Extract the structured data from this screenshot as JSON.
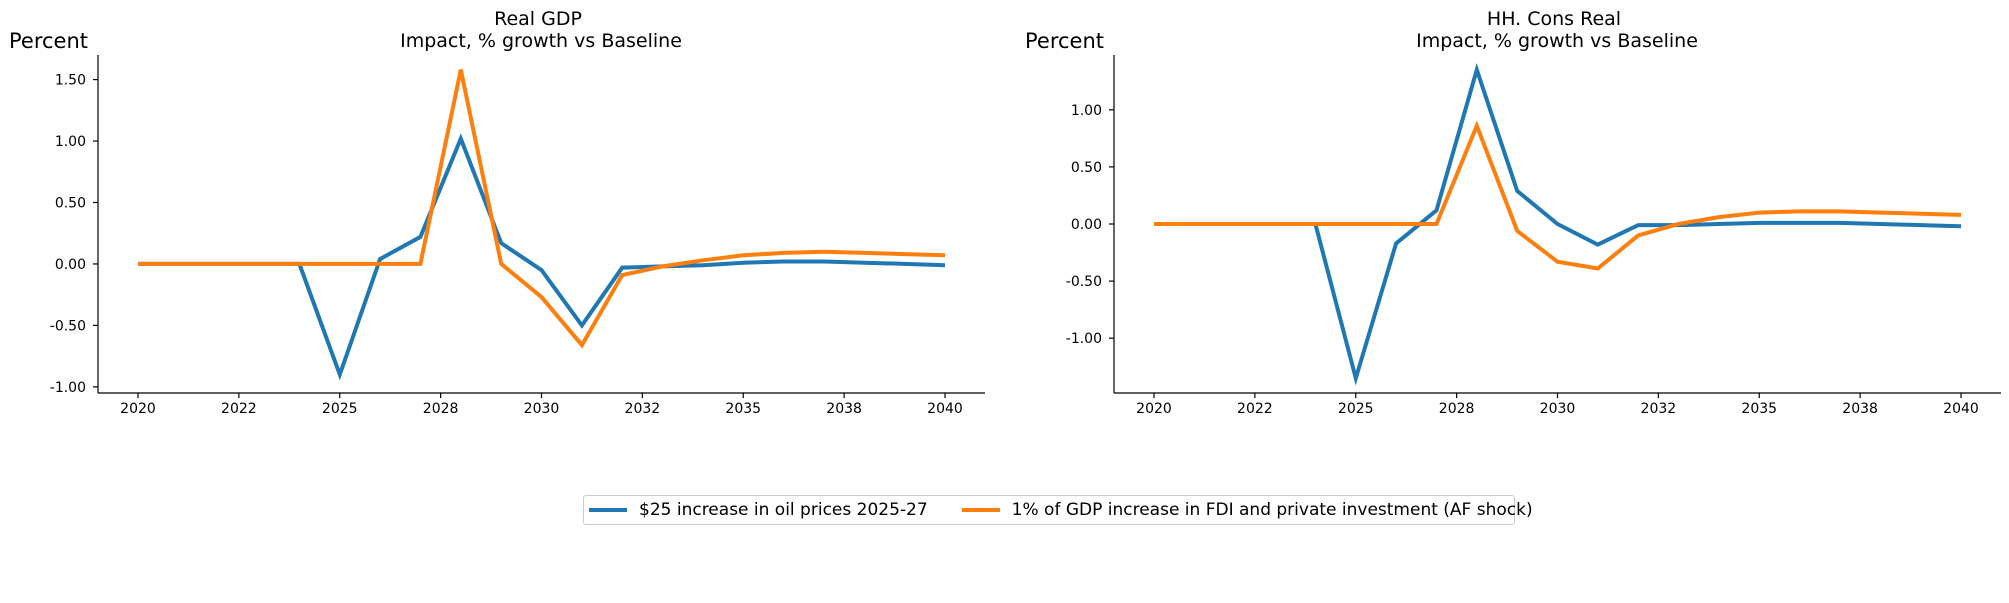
{
  "chart_data": [
    {
      "type": "line",
      "title": "Real GDP",
      "subtitle": "Impact, % growth vs Baseline",
      "ylabel": "Percent",
      "xlabel": "",
      "x": [
        2020,
        2021,
        2022,
        2023,
        2024,
        2025,
        2026,
        2027,
        2028,
        2029,
        2030,
        2031,
        2032,
        2033,
        2034,
        2035,
        2036,
        2037,
        2038,
        2039,
        2040
      ],
      "xticks": [
        "2020",
        "2022",
        "2025",
        "2028",
        "2030",
        "2032",
        "2035",
        "2038",
        "2040"
      ],
      "yticks": [
        "-1.00",
        "-0.50",
        "0.00",
        "0.50",
        "1.00",
        "1.50"
      ],
      "ylim": [
        -1.05,
        1.7
      ],
      "grid": false,
      "series": [
        {
          "name": "$25 increase in oil prices 2025-27",
          "color": "#1f77b4",
          "values": [
            0,
            0,
            0,
            0,
            0,
            -0.9,
            0.04,
            0.22,
            1.02,
            0.17,
            -0.05,
            -0.5,
            -0.03,
            -0.02,
            -0.01,
            0.01,
            0.02,
            0.02,
            0.01,
            0.0,
            -0.01
          ]
        },
        {
          "name": "1% of GDP increase in FDI and private investment (AF shock)",
          "color": "#ff7f0e",
          "values": [
            0,
            0,
            0,
            0,
            0,
            0,
            0,
            0,
            1.58,
            0.0,
            -0.27,
            -0.66,
            -0.09,
            -0.02,
            0.03,
            0.07,
            0.09,
            0.1,
            0.09,
            0.08,
            0.07
          ]
        }
      ]
    },
    {
      "type": "line",
      "title": "HH. Cons Real",
      "subtitle": "Impact, % growth vs Baseline",
      "ylabel": "Percent",
      "xlabel": "",
      "x": [
        2020,
        2021,
        2022,
        2023,
        2024,
        2025,
        2026,
        2027,
        2028,
        2029,
        2030,
        2031,
        2032,
        2033,
        2034,
        2035,
        2036,
        2037,
        2038,
        2039,
        2040
      ],
      "xticks": [
        "2020",
        "2022",
        "2025",
        "2028",
        "2030",
        "2032",
        "2035",
        "2038",
        "2040"
      ],
      "yticks": [
        "-1.00",
        "-0.50",
        "0.00",
        "0.50",
        "1.00"
      ],
      "ylim": [
        -1.48,
        1.48
      ],
      "grid": false,
      "series": [
        {
          "name": "$25 increase in oil prices 2025-27",
          "color": "#1f77b4",
          "values": [
            0,
            0,
            0,
            0,
            0,
            -1.35,
            -0.17,
            0.12,
            1.35,
            0.29,
            0.0,
            -0.18,
            -0.01,
            -0.01,
            0.0,
            0.01,
            0.01,
            0.01,
            0.0,
            -0.01,
            -0.02
          ]
        },
        {
          "name": "1% of GDP increase in FDI and private investment (AF shock)",
          "color": "#ff7f0e",
          "values": [
            0,
            0,
            0,
            0,
            0,
            0,
            0,
            0,
            0.86,
            -0.06,
            -0.33,
            -0.39,
            -0.1,
            0.0,
            0.06,
            0.1,
            0.11,
            0.11,
            0.1,
            0.09,
            0.08
          ]
        }
      ]
    }
  ],
  "legend": {
    "placement": "bottom-center",
    "items": [
      {
        "label": "$25 increase in oil prices 2025-27",
        "color": "#1f77b4"
      },
      {
        "label": "1% of GDP increase in FDI and private investment (AF shock)",
        "color": "#ff7f0e"
      }
    ]
  }
}
